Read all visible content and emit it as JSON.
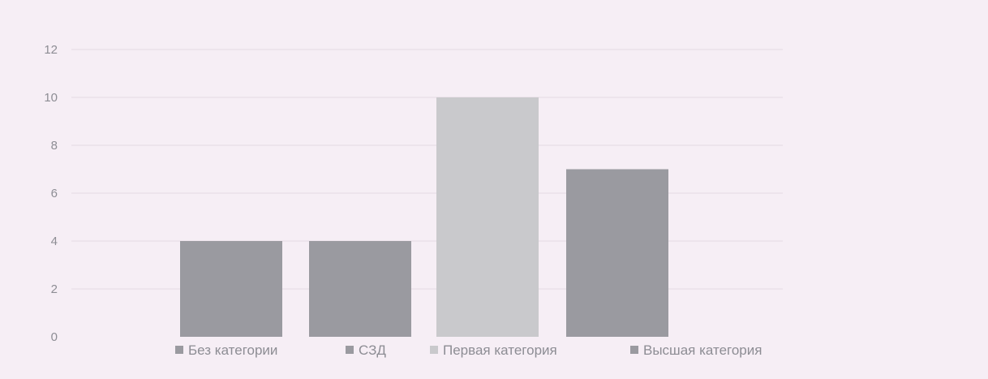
{
  "chart_data": {
    "type": "bar",
    "categories": [
      "Без категории",
      "СЗД",
      "Первая категория",
      "Высшая категория"
    ],
    "values": [
      4,
      4,
      10,
      7
    ],
    "colors": [
      "#9a9aa0",
      "#9a9aa0",
      "#c9c9cc",
      "#9a9aa0"
    ],
    "yticks": [
      "0",
      "2",
      "4",
      "6",
      "8",
      "10",
      "12"
    ],
    "ylim": [
      0,
      12
    ],
    "grid": true,
    "legend": {
      "position": "bottom",
      "items": [
        {
          "label": "Без категории",
          "color": "#9a9aa0"
        },
        {
          "label": "СЗД",
          "color": "#9a9aa0"
        },
        {
          "label": "Первая категория",
          "color": "#c9c9cc"
        },
        {
          "label": "Высшая категория",
          "color": "#9a9aa0"
        }
      ]
    }
  }
}
